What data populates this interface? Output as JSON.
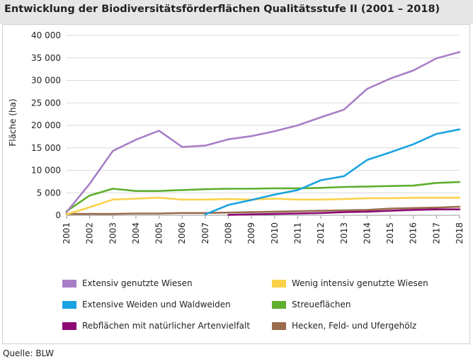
{
  "title": "Entwicklung der Biodiversitätsförderflächen Qualitätsstufe II (2001 – 2018)",
  "source": "Quelle: BLW",
  "chart_data": {
    "type": "line",
    "title": "Entwicklung der Biodiversitätsförderflächen Qualitätsstufe II (2001 – 2018)",
    "xlabel": "",
    "ylabel": "Fläche (ha)",
    "ylim": [
      0,
      40000
    ],
    "yticks": [
      0,
      5000,
      10000,
      15000,
      20000,
      25000,
      30000,
      35000,
      40000
    ],
    "ytick_labels": [
      "0",
      "5 000",
      "10 000",
      "15 000",
      "20 000",
      "25 000",
      "30 000",
      "35 000",
      "40 000"
    ],
    "categories": [
      "2001",
      "2002",
      "2003",
      "2004",
      "2005",
      "2006",
      "2007",
      "2008",
      "2009",
      "2010",
      "2011",
      "2012",
      "2013",
      "2014",
      "2015",
      "2016",
      "2017",
      "2018"
    ],
    "grid": true,
    "series": [
      {
        "name": "Extensiv genutzte Wiesen",
        "color": "#a87fc6",
        "values": [
          700,
          7000,
          14300,
          16800,
          18800,
          15200,
          15500,
          16900,
          17600,
          18700,
          20000,
          21800,
          23500,
          28100,
          30400,
          32200,
          34900,
          36300
        ]
      },
      {
        "name": "Wenig intensiv genutzte Wiesen",
        "color": "#fbd14b",
        "values": [
          200,
          1800,
          3500,
          3700,
          3900,
          3500,
          3500,
          3600,
          3500,
          3700,
          3500,
          3500,
          3600,
          3800,
          3800,
          3900,
          3900,
          3900
        ]
      },
      {
        "name": "Extensive Weiden und Waldweiden",
        "color": "#1aa3e2",
        "values": [
          null,
          null,
          null,
          null,
          null,
          null,
          200,
          2300,
          3400,
          4600,
          5600,
          7800,
          8700,
          12300,
          14000,
          15800,
          18100,
          19100
        ]
      },
      {
        "name": "Streueflächen",
        "color": "#5fae2e",
        "values": [
          900,
          4400,
          5900,
          5400,
          5400,
          5600,
          5800,
          5900,
          5900,
          6000,
          6000,
          6100,
          6300,
          6400,
          6500,
          6600,
          7200,
          7400
        ]
      },
      {
        "name": "Rebflächen mit natürlicher Artenvielfalt",
        "color": "#8c0a73",
        "values": [
          null,
          null,
          null,
          null,
          null,
          null,
          null,
          100,
          200,
          300,
          400,
          500,
          700,
          800,
          1000,
          1200,
          1300,
          1300
        ]
      },
      {
        "name": "Hecken, Feld- und Ufergehölz",
        "color": "#9a6b4d",
        "values": [
          300,
          300,
          300,
          400,
          400,
          500,
          500,
          600,
          700,
          800,
          900,
          1000,
          1100,
          1200,
          1500,
          1600,
          1700,
          1900
        ]
      }
    ],
    "legend": [
      "Extensiv genutzte Wiesen",
      "Wenig intensiv genutzte Wiesen",
      "Extensive Weiden und Waldweiden",
      "Streueflächen",
      "Rebflächen mit natürlicher Artenvielfalt",
      "Hecken, Feld- und Ufergehölz"
    ]
  }
}
